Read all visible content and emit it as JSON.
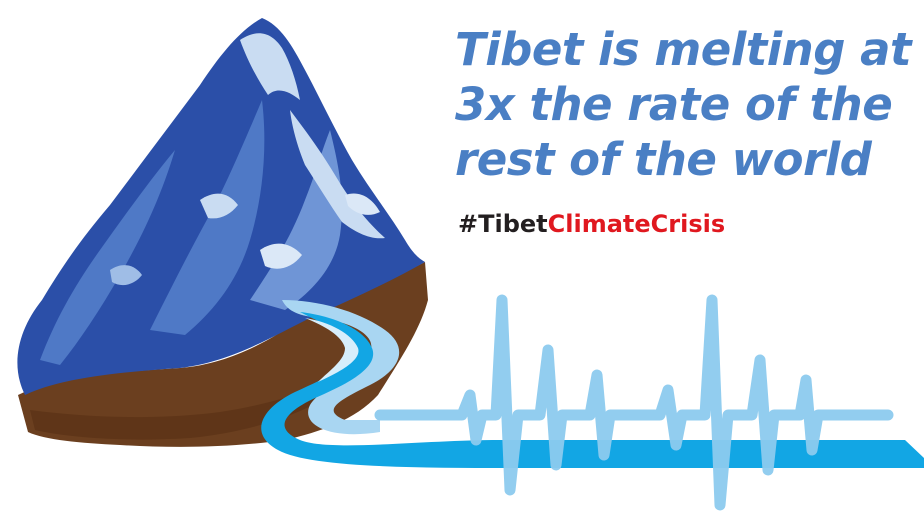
{
  "headline": {
    "line1": "Tibet is melting at",
    "line2": "3x the rate of the",
    "line3": "rest of the world"
  },
  "hashtag": {
    "prefix": "#Tibet",
    "suffix": "ClimateCrisis"
  },
  "colors": {
    "headline": "#4a7fc4",
    "hashtag_dark": "#231f20",
    "hashtag_red": "#e0181f",
    "mountain_dark": "#2b4fa8",
    "mountain_mid": "#4f79c6",
    "snow": "#c9dcf2",
    "earth": "#6b3f1f",
    "river": "#12a6e4",
    "pulse": "#8ccaee"
  },
  "icons": [
    "mountain-illustration",
    "river-illustration",
    "heartbeat-pulse-line"
  ]
}
